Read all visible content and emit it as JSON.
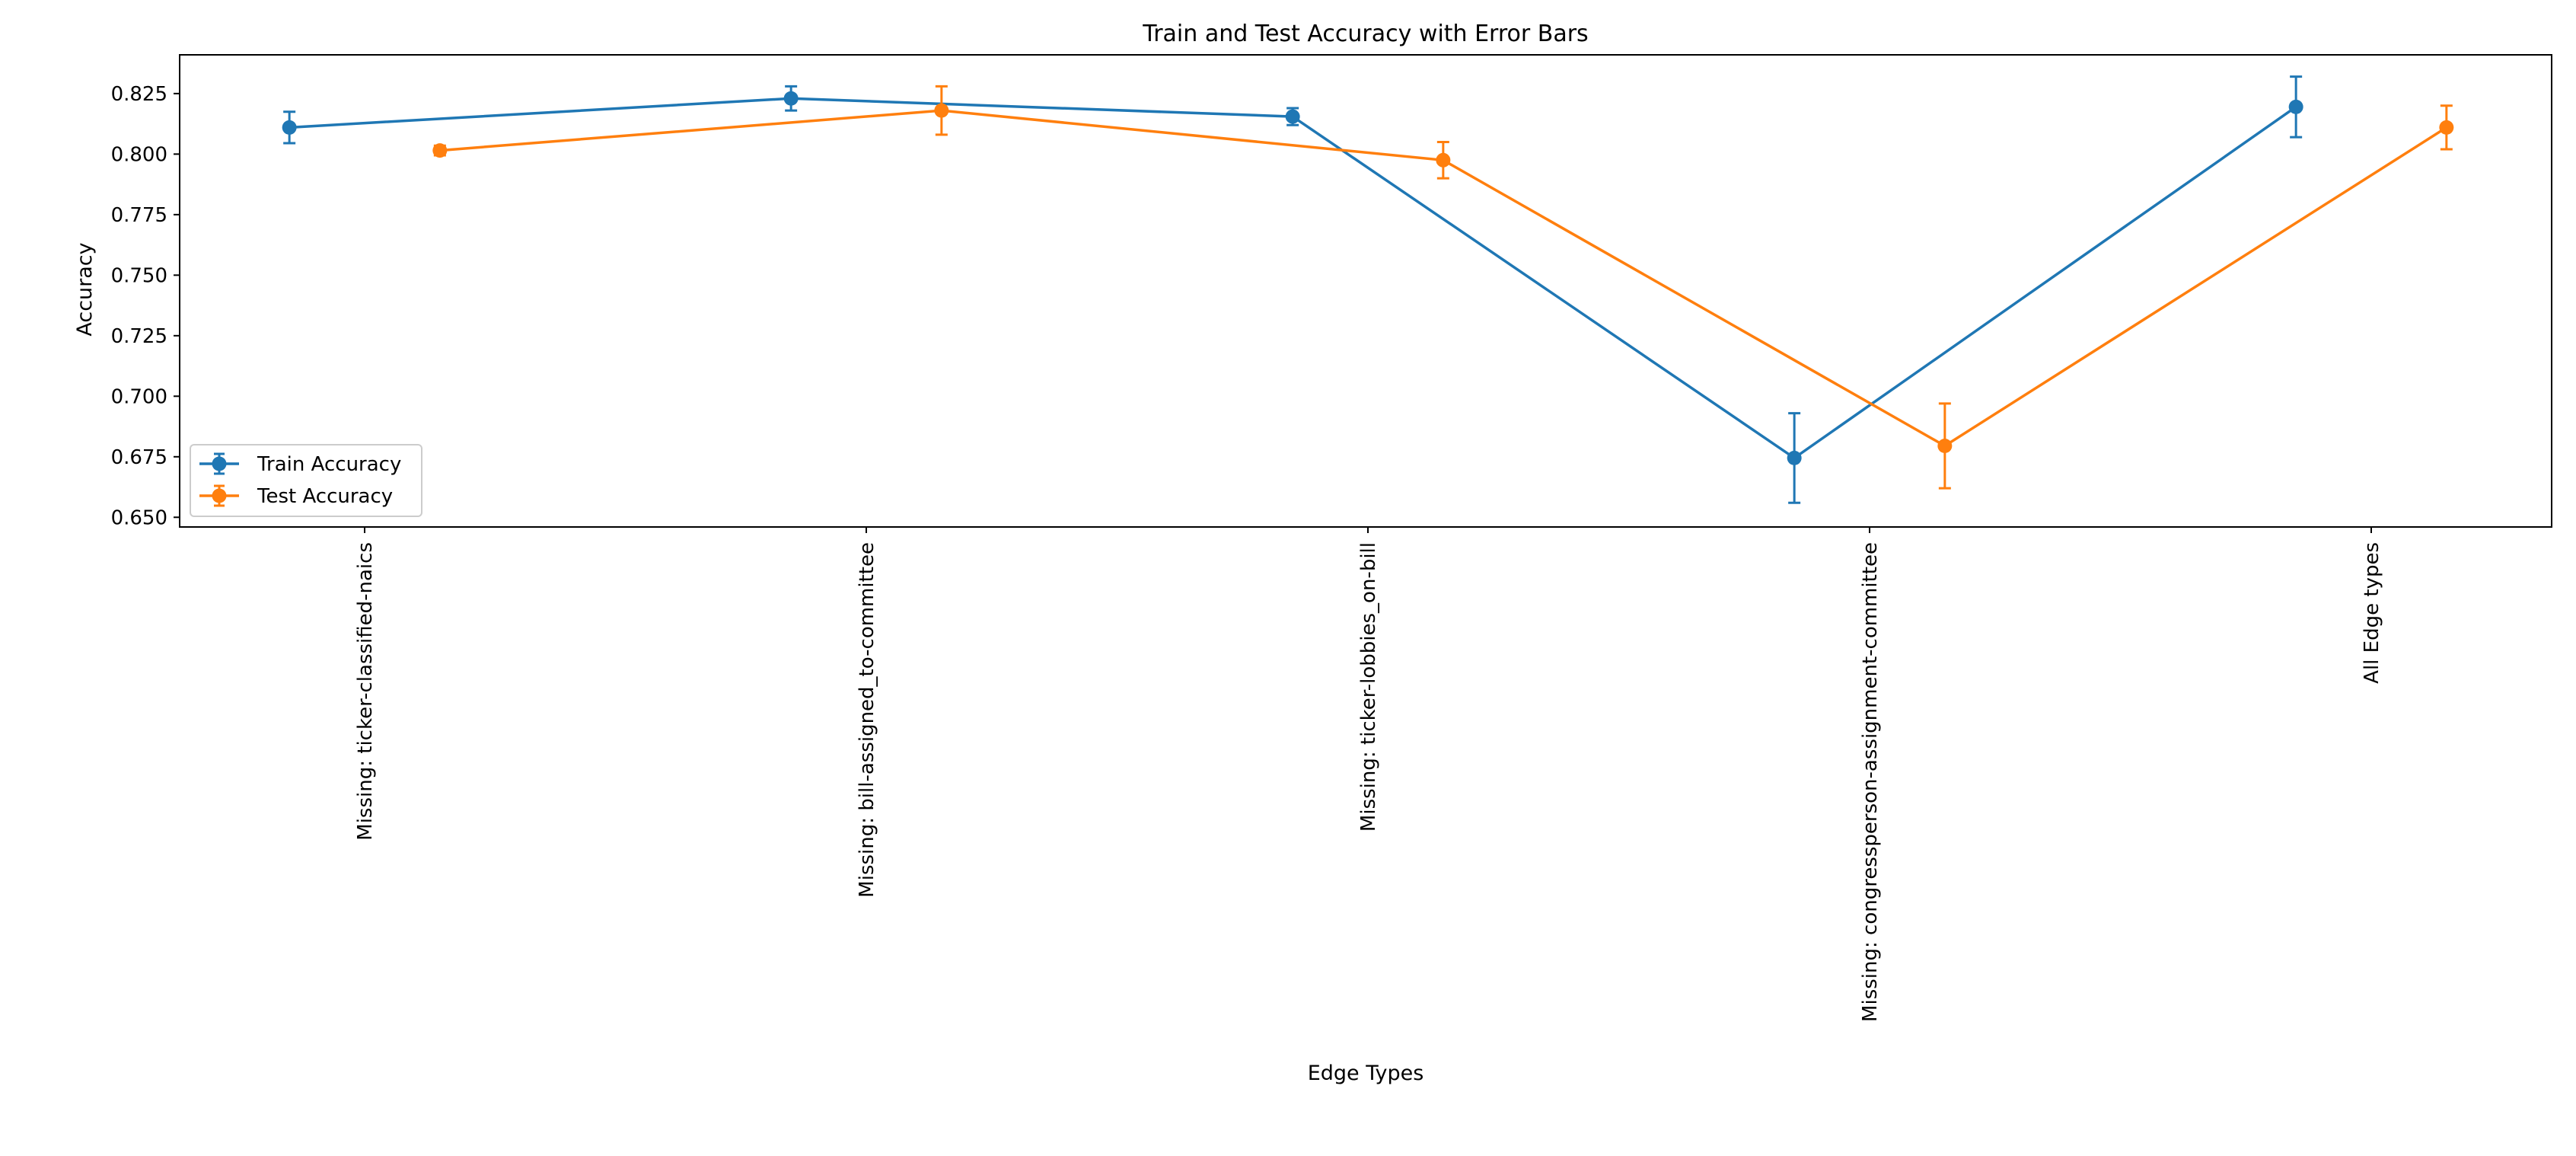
{
  "chart_data": {
    "type": "line",
    "title": "Train and Test Accuracy with Error Bars",
    "xlabel": "Edge Types",
    "ylabel": "Accuracy",
    "categories": [
      "Missing: ticker-classified-naics",
      "Missing: bill-assigned_to-committee",
      "Missing: ticker-lobbies_on-bill",
      "Missing: congressperson-assignment-committee",
      "All Edge types"
    ],
    "ylim": [
      0.646,
      0.841
    ],
    "yticks": [
      "0.650",
      "0.675",
      "0.700",
      "0.725",
      "0.750",
      "0.775",
      "0.800",
      "0.825"
    ],
    "grid": false,
    "legend_position": "lower-left",
    "series": [
      {
        "name": "Train Accuracy",
        "color": "#1f77b4",
        "category_offset": -0.15,
        "values": [
          0.811,
          0.823,
          0.8155,
          0.6745,
          0.8195
        ],
        "errors": [
          0.0065,
          0.005,
          0.0035,
          0.0185,
          0.0125
        ]
      },
      {
        "name": "Test Accuracy",
        "color": "#ff7f0e",
        "category_offset": 0.15,
        "values": [
          0.8015,
          0.818,
          0.7975,
          0.6795,
          0.811
        ],
        "errors": [
          0.002,
          0.01,
          0.0075,
          0.0175,
          0.009
        ]
      }
    ]
  }
}
